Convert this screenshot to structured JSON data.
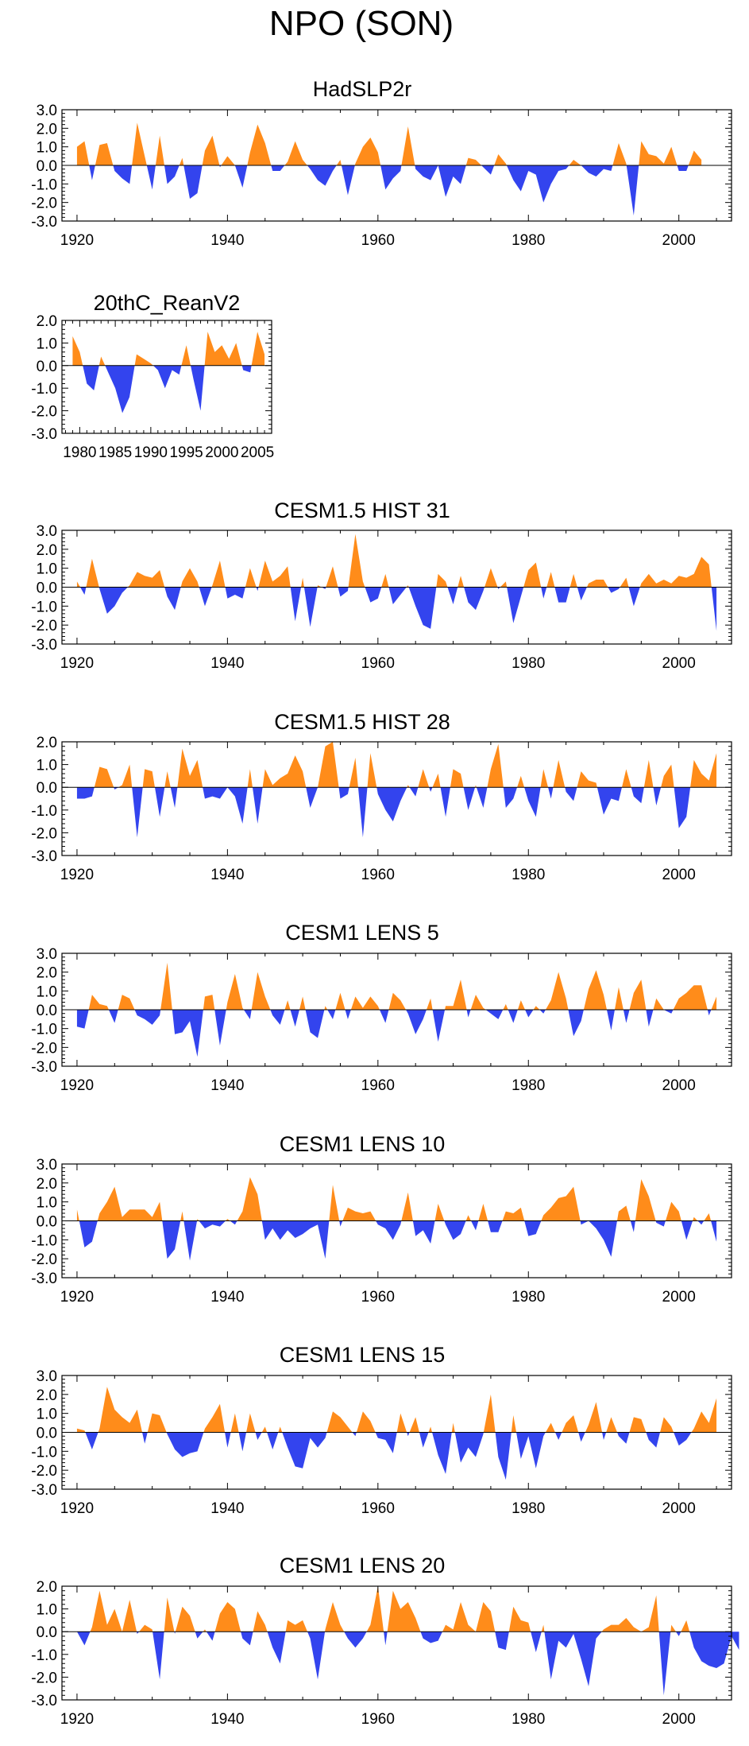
{
  "figure_title": "NPO (SON)",
  "colors": {
    "positive": "#ff8c1a",
    "negative": "#3344ee",
    "axis": "#000000"
  },
  "chart_data": [
    {
      "type": "area",
      "title": "HadSLP2r",
      "xlim": [
        1918,
        2007
      ],
      "ylim": [
        -3.0,
        3.0
      ],
      "yticks": [
        "3.0",
        "2.0",
        "1.0",
        "0.0",
        "-1.0",
        "-2.0",
        "-3.0"
      ],
      "xticks": [
        "1920",
        "1940",
        "1960",
        "1980",
        "2000"
      ],
      "x_start": 1920,
      "values": [
        1.0,
        1.3,
        -0.8,
        1.1,
        1.2,
        -0.3,
        -0.7,
        -1.0,
        2.3,
        0.5,
        -1.3,
        1.6,
        -1.0,
        -0.6,
        0.4,
        -1.8,
        -1.5,
        0.8,
        1.6,
        -0.1,
        0.5,
        0.0,
        -1.2,
        0.7,
        2.2,
        1.2,
        -0.3,
        -0.3,
        0.2,
        1.3,
        0.3,
        -0.2,
        -0.8,
        -1.1,
        -0.3,
        0.3,
        -1.6,
        0.1,
        1.0,
        1.5,
        0.7,
        -1.3,
        -0.7,
        -0.3,
        2.1,
        -0.2,
        -0.6,
        -0.8,
        0.0,
        -1.7,
        -0.6,
        -1.0,
        0.4,
        0.3,
        -0.1,
        -0.5,
        0.6,
        0.1,
        -0.8,
        -1.4,
        -0.3,
        -0.5,
        -2.0,
        -1.0,
        -0.3,
        -0.2,
        0.3,
        0.0,
        -0.4,
        -0.6,
        -0.2,
        -0.3,
        1.2,
        0.1,
        -2.7,
        1.3,
        0.6,
        0.5,
        0.1,
        1.0,
        -0.3,
        -0.3,
        0.8,
        0.3
      ]
    },
    {
      "type": "area",
      "title": "20thC_ReanV2",
      "xlim": [
        1977.5,
        2007
      ],
      "ylim": [
        -3.0,
        2.0
      ],
      "yticks": [
        "2.0",
        "1.0",
        "0.0",
        "-1.0",
        "-2.0",
        "-3.0"
      ],
      "xticks": [
        "1980",
        "1985",
        "1990",
        "1995",
        "2000",
        "2005"
      ],
      "x_start": 1979,
      "values": [
        1.3,
        0.6,
        -0.8,
        -1.1,
        0.4,
        -0.3,
        -1.0,
        -2.1,
        -1.4,
        0.5,
        0.3,
        0.1,
        -0.2,
        -1.0,
        -0.2,
        -0.4,
        0.9,
        -0.6,
        -2.0,
        1.5,
        0.6,
        0.9,
        0.3,
        1.0,
        -0.2,
        -0.3,
        1.5,
        0.5
      ]
    },
    {
      "type": "area",
      "title": "CESM1.5 HIST 31",
      "xlim": [
        1918,
        2007
      ],
      "ylim": [
        -3.0,
        3.0
      ],
      "yticks": [
        "3.0",
        "2.0",
        "1.0",
        "0.0",
        "-1.0",
        "-2.0",
        "-3.0"
      ],
      "xticks": [
        "1920",
        "1940",
        "1960",
        "1980",
        "2000"
      ],
      "x_start": 1920,
      "values": [
        0.3,
        -0.4,
        1.5,
        -0.1,
        -1.4,
        -1.0,
        -0.3,
        0.1,
        0.8,
        0.6,
        0.5,
        0.9,
        -0.5,
        -1.2,
        0.3,
        1.0,
        0.3,
        -1.0,
        0.1,
        1.4,
        -0.6,
        -0.4,
        -0.6,
        1.0,
        -0.2,
        1.4,
        0.3,
        0.6,
        1.1,
        -1.8,
        0.5,
        -2.1,
        0.1,
        -0.1,
        1.1,
        -0.5,
        -0.2,
        2.8,
        0.3,
        -0.8,
        -0.6,
        0.7,
        -0.9,
        -0.4,
        0.1,
        -1.0,
        -2.0,
        -2.2,
        0.7,
        0.3,
        -0.9,
        0.6,
        -0.8,
        -1.2,
        -0.2,
        1.0,
        -0.1,
        0.3,
        -1.9,
        -0.5,
        0.9,
        1.3,
        -0.6,
        0.8,
        -0.8,
        -0.8,
        0.7,
        -0.7,
        0.2,
        0.4,
        0.4,
        -0.3,
        -0.1,
        0.5,
        -1.0,
        0.2,
        0.7,
        0.2,
        0.4,
        0.2,
        0.6,
        0.5,
        0.7,
        1.6,
        1.2,
        -2.3
      ]
    },
    {
      "type": "area",
      "title": "CESM1.5 HIST 28",
      "xlim": [
        1918,
        2007
      ],
      "ylim": [
        -3.0,
        2.0
      ],
      "yticks": [
        "2.0",
        "1.0",
        "0.0",
        "-1.0",
        "-2.0",
        "-3.0"
      ],
      "xticks": [
        "1920",
        "1940",
        "1960",
        "1980",
        "2000"
      ],
      "x_start": 1920,
      "values": [
        -0.5,
        -0.5,
        -0.4,
        0.9,
        0.8,
        -0.1,
        0.1,
        1.0,
        -2.2,
        0.8,
        0.7,
        -1.3,
        0.7,
        -0.9,
        1.7,
        0.5,
        1.2,
        -0.5,
        -0.4,
        -0.5,
        0.0,
        -0.4,
        -1.6,
        0.8,
        -1.6,
        0.8,
        0.1,
        0.4,
        0.6,
        1.4,
        0.7,
        -0.9,
        0.0,
        1.8,
        2.0,
        -0.5,
        -0.3,
        1.3,
        -2.2,
        1.5,
        -0.3,
        -1.0,
        -1.5,
        -0.6,
        0.1,
        -0.4,
        0.8,
        -0.2,
        0.6,
        -1.3,
        0.8,
        0.6,
        -1.0,
        0.1,
        -0.9,
        0.8,
        1.9,
        -0.9,
        -0.5,
        0.5,
        -0.6,
        -1.3,
        0.8,
        -0.5,
        1.2,
        -0.2,
        -0.6,
        0.7,
        0.3,
        0.2,
        -1.2,
        -0.5,
        -0.6,
        0.8,
        -0.4,
        -0.7,
        1.2,
        -0.8,
        0.5,
        1.0,
        -1.8,
        -1.3,
        1.2,
        0.6,
        0.3,
        1.5
      ]
    },
    {
      "type": "area",
      "title": "CESM1 LENS 5",
      "xlim": [
        1918,
        2007
      ],
      "ylim": [
        -3.0,
        3.0
      ],
      "yticks": [
        "3.0",
        "2.0",
        "1.0",
        "0.0",
        "-1.0",
        "-2.0",
        "-3.0"
      ],
      "xticks": [
        "1920",
        "1940",
        "1960",
        "1980",
        "2000"
      ],
      "x_start": 1920,
      "values": [
        -0.9,
        -1.0,
        0.8,
        0.3,
        0.2,
        -0.7,
        0.8,
        0.6,
        -0.3,
        -0.5,
        -0.8,
        -0.3,
        2.5,
        -1.3,
        -1.2,
        -0.6,
        -2.5,
        0.7,
        0.8,
        -1.9,
        0.4,
        1.9,
        0.1,
        -0.5,
        2.0,
        0.7,
        -0.3,
        -0.8,
        0.5,
        -0.9,
        0.7,
        -1.2,
        -1.5,
        0.2,
        -0.5,
        0.9,
        -0.5,
        0.7,
        0.1,
        0.7,
        0.2,
        -0.7,
        0.9,
        0.5,
        -0.2,
        -1.3,
        -0.5,
        0.6,
        -1.7,
        0.2,
        0.2,
        1.6,
        -0.4,
        0.8,
        0.1,
        -0.2,
        -0.5,
        0.3,
        -0.7,
        0.5,
        -0.4,
        0.2,
        -0.2,
        0.5,
        2.0,
        0.6,
        -1.4,
        -0.6,
        1.1,
        2.1,
        0.8,
        -1.1,
        1.2,
        -0.7,
        0.9,
        1.6,
        -0.9,
        0.6,
        0.0,
        -0.2,
        0.6,
        0.9,
        1.3,
        1.3,
        -0.3,
        0.7
      ]
    },
    {
      "type": "area",
      "title": "CESM1 LENS 10",
      "xlim": [
        1918,
        2007
      ],
      "ylim": [
        -3.0,
        3.0
      ],
      "yticks": [
        "3.0",
        "2.0",
        "1.0",
        "0.0",
        "-1.0",
        "-2.0",
        "-3.0"
      ],
      "xticks": [
        "1920",
        "1940",
        "1960",
        "1980",
        "2000"
      ],
      "x_start": 1920,
      "values": [
        0.6,
        -1.4,
        -1.1,
        0.4,
        1.0,
        1.8,
        0.2,
        0.6,
        0.6,
        0.6,
        0.2,
        1.0,
        -2.0,
        -1.5,
        0.5,
        -2.1,
        0.1,
        -0.4,
        -0.2,
        -0.3,
        0.1,
        -0.2,
        0.5,
        2.3,
        1.4,
        -1.0,
        -0.4,
        -1.0,
        -0.5,
        -0.9,
        -0.7,
        -0.4,
        -0.2,
        -2.0,
        1.9,
        -0.3,
        0.7,
        0.5,
        0.4,
        0.5,
        -0.2,
        -0.4,
        -1.0,
        -0.2,
        1.5,
        -0.8,
        -0.5,
        -1.2,
        0.9,
        -0.2,
        -1.0,
        -0.7,
        0.3,
        -0.5,
        0.9,
        -0.6,
        -0.6,
        0.5,
        0.4,
        0.7,
        -0.8,
        -0.7,
        0.3,
        0.7,
        1.2,
        1.3,
        1.8,
        -0.2,
        0.0,
        -0.4,
        -1.0,
        -1.9,
        0.5,
        0.8,
        -0.6,
        2.2,
        1.3,
        -0.1,
        -0.3,
        1.0,
        0.5,
        -1.0,
        0.2,
        -0.2,
        0.4,
        -1.1
      ]
    },
    {
      "type": "area",
      "title": "CESM1 LENS 15",
      "xlim": [
        1918,
        2007
      ],
      "ylim": [
        -3.0,
        3.0
      ],
      "yticks": [
        "3.0",
        "2.0",
        "1.0",
        "0.0",
        "-1.0",
        "-2.0",
        "-3.0"
      ],
      "xticks": [
        "1920",
        "1940",
        "1960",
        "1980",
        "2000"
      ],
      "x_start": 1920,
      "values": [
        0.2,
        0.1,
        -0.9,
        0.2,
        2.4,
        1.2,
        0.8,
        0.5,
        1.2,
        -0.6,
        1.0,
        0.9,
        -0.1,
        -0.9,
        -1.3,
        -1.1,
        -1.0,
        0.2,
        0.8,
        1.5,
        -0.8,
        1.0,
        -1.0,
        1.0,
        -0.4,
        0.3,
        -0.9,
        0.3,
        -0.8,
        -1.8,
        -1.9,
        -0.3,
        -0.8,
        -0.3,
        1.1,
        0.8,
        0.3,
        -0.2,
        1.1,
        0.6,
        -0.3,
        -0.4,
        -1.1,
        1.0,
        -0.2,
        0.8,
        -0.8,
        0.3,
        -1.2,
        -2.2,
        0.5,
        -1.6,
        -0.8,
        -1.3,
        -0.1,
        2.0,
        -1.3,
        -2.5,
        0.9,
        -1.4,
        -0.2,
        -1.9,
        -0.2,
        0.5,
        -0.4,
        0.5,
        0.9,
        -0.5,
        0.4,
        1.6,
        -0.4,
        0.8,
        -0.2,
        -0.6,
        0.8,
        0.7,
        -0.4,
        -0.8,
        0.8,
        0.3,
        -0.7,
        -0.4,
        0.2,
        1.1,
        0.5,
        1.8
      ]
    },
    {
      "type": "area",
      "title": "CESM1 LENS 20",
      "xlim": [
        1918,
        2007
      ],
      "ylim": [
        -3.0,
        2.0
      ],
      "yticks": [
        "2.0",
        "1.0",
        "0.0",
        "-1.0",
        "-2.0",
        "-3.0"
      ],
      "xticks": [
        "1920",
        "1940",
        "1960",
        "1980",
        "2000"
      ],
      "x_start": 1920,
      "values": [
        0.0,
        -0.6,
        0.2,
        1.8,
        0.3,
        1.0,
        0.0,
        1.4,
        -0.1,
        0.3,
        0.1,
        -2.1,
        1.5,
        -0.1,
        1.1,
        0.7,
        -0.3,
        0.1,
        -0.4,
        0.8,
        1.3,
        1.0,
        -0.3,
        -0.6,
        0.9,
        0.3,
        -0.7,
        -1.4,
        0.5,
        0.3,
        0.5,
        -0.3,
        -2.1,
        0.1,
        1.3,
        0.3,
        -0.3,
        -0.7,
        -0.3,
        0.3,
        2.0,
        -0.6,
        1.8,
        1.0,
        1.3,
        0.6,
        -0.3,
        -0.5,
        -0.4,
        0.3,
        0.1,
        1.3,
        0.3,
        0.0,
        1.3,
        0.9,
        -0.7,
        -0.8,
        1.1,
        0.5,
        0.4,
        -0.9,
        0.3,
        -2.1,
        -0.4,
        -0.7,
        -0.1,
        -1.2,
        -2.4,
        -0.3,
        0.1,
        0.3,
        0.3,
        0.6,
        0.2,
        0.0,
        0.2,
        1.6,
        -2.8,
        0.3,
        -0.2,
        0.5,
        -0.7,
        -1.3,
        -1.5,
        -1.6,
        -1.4,
        -0.2,
        -0.8
      ]
    }
  ]
}
